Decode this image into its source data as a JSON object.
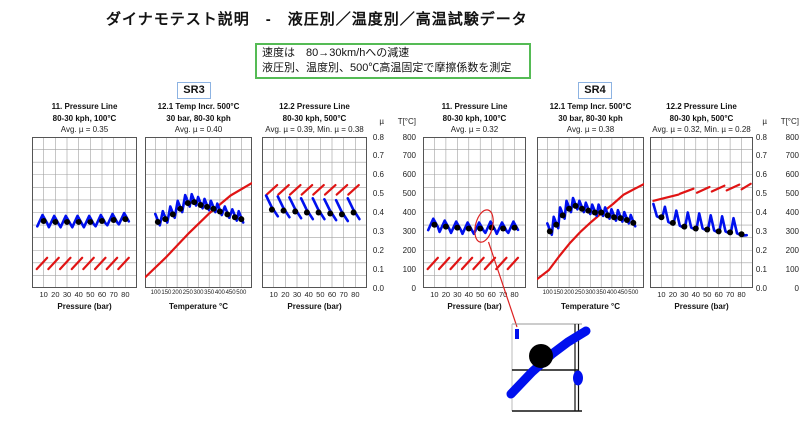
{
  "page": {
    "title": "ダイナモテスト説明　-　液圧別／温度別／高温試験データ"
  },
  "note_box": {
    "lines": [
      "速度は　80→30km/hへの減速",
      "液圧別、温度別、500℃高温固定で摩擦係数を測定"
    ],
    "border_color": "#55bb55"
  },
  "groups": [
    {
      "label": "SR3"
    },
    {
      "label": "SR4"
    }
  ],
  "y_axis": {
    "mu_header": "µ",
    "temp_header": "T[°C]",
    "mu_ticks": [
      "0.8",
      "0.7",
      "0.6",
      "0.5",
      "0.4",
      "0.3",
      "0.2",
      "0.1",
      "0.0"
    ],
    "temp_ticks": [
      "800",
      "700",
      "600",
      "500",
      "400",
      "300",
      "200",
      "100",
      "0"
    ]
  },
  "colors": {
    "mu_line": "#0010ee",
    "temp_line": "#e01414",
    "dot": "#000000",
    "grid": "#a0a0a0",
    "plot_border": "#555555",
    "callout": "#dd2222"
  },
  "chart_data": [
    {
      "group": "SR3",
      "type": "line",
      "title": "11. Pressure Line",
      "subtitle": "80-30 kph, 100°C",
      "stats": "Avg. µ = 0.35",
      "xlabel": "Pressure (bar)",
      "x_ticks": [
        10,
        20,
        30,
        40,
        50,
        60,
        70,
        80
      ],
      "x_domain": [
        0,
        90
      ],
      "y_left": {
        "label": "µ",
        "domain": [
          0,
          0.8
        ]
      },
      "y_right": {
        "label": "T[°C]",
        "domain": [
          0,
          800
        ]
      },
      "series": {
        "mu_dots": [
          [
            10,
            0.355
          ],
          [
            20,
            0.35
          ],
          [
            30,
            0.35
          ],
          [
            40,
            0.35
          ],
          [
            50,
            0.35
          ],
          [
            60,
            0.355
          ],
          [
            70,
            0.36
          ],
          [
            80,
            0.365
          ]
        ],
        "mu_style": "zigzag-flat",
        "temp": {
          "style": "sawtooth",
          "level": 130,
          "amplitude": 30
        }
      }
    },
    {
      "group": "SR3",
      "type": "line",
      "title": "12.1 Temp Incr. 500°C",
      "subtitle": "30 bar, 80-30 kph",
      "stats": "Avg. µ = 0.40",
      "xlabel": "Temperature °C",
      "x_ticks": [
        100,
        150,
        200,
        250,
        300,
        350,
        400,
        450,
        500
      ],
      "x_domain": [
        50,
        550
      ],
      "y_left": {
        "label": "µ",
        "domain": [
          0,
          0.8
        ]
      },
      "y_right": {
        "label": "T[°C]",
        "domain": [
          0,
          800
        ]
      },
      "series": {
        "mu_dots": [
          [
            110,
            0.35
          ],
          [
            145,
            0.365
          ],
          [
            180,
            0.39
          ],
          [
            215,
            0.42
          ],
          [
            250,
            0.45
          ],
          [
            280,
            0.455
          ],
          [
            310,
            0.44
          ],
          [
            340,
            0.43
          ],
          [
            370,
            0.42
          ],
          [
            400,
            0.405
          ],
          [
            435,
            0.39
          ],
          [
            470,
            0.375
          ],
          [
            500,
            0.365
          ]
        ],
        "mu_style": "zigzag-trend",
        "temp": {
          "style": "line",
          "points": [
            [
              52,
              58
            ],
            [
              150,
              165
            ],
            [
              250,
              285
            ],
            [
              350,
              395
            ],
            [
              450,
              490
            ],
            [
              548,
              555
            ]
          ]
        }
      }
    },
    {
      "group": "SR3",
      "type": "line",
      "title": "12.2 Pressure Line",
      "subtitle": "80-30 kph, 500°C",
      "stats": "Avg. µ = 0.39, Min. µ = 0.38",
      "xlabel": "Pressure (bar)",
      "x_ticks": [
        10,
        20,
        30,
        40,
        50,
        60,
        70,
        80
      ],
      "x_domain": [
        0,
        90
      ],
      "y_left": {
        "label": "µ",
        "domain": [
          0,
          0.8
        ]
      },
      "y_right": {
        "label": "T[°C]",
        "domain": [
          0,
          800
        ]
      },
      "series": {
        "mu_dots": [
          [
            10,
            0.415
          ],
          [
            20,
            0.41
          ],
          [
            30,
            0.405
          ],
          [
            40,
            0.4
          ],
          [
            50,
            0.4
          ],
          [
            60,
            0.395
          ],
          [
            70,
            0.39
          ],
          [
            80,
            0.4
          ]
        ],
        "mu_style": "fall",
        "temp": {
          "style": "sawtooth",
          "level": 520,
          "amplitude": 25
        }
      }
    },
    {
      "group": "SR4",
      "type": "line",
      "title": "11. Pressure Line",
      "subtitle": "80-30 kph, 100°C",
      "stats": "Avg. µ = 0.32",
      "xlabel": "Pressure (bar)",
      "x_ticks": [
        10,
        20,
        30,
        40,
        50,
        60,
        70,
        80
      ],
      "x_domain": [
        0,
        90
      ],
      "y_left": {
        "label": "µ",
        "domain": [
          0,
          0.8
        ]
      },
      "y_right": {
        "label": "T[°C]",
        "domain": [
          0,
          800
        ]
      },
      "annotation": {
        "type": "magnifier-callout",
        "target_pressure": 50
      },
      "series": {
        "mu_dots": [
          [
            10,
            0.335
          ],
          [
            20,
            0.325
          ],
          [
            30,
            0.32
          ],
          [
            40,
            0.315
          ],
          [
            50,
            0.315
          ],
          [
            60,
            0.32
          ],
          [
            70,
            0.315
          ],
          [
            80,
            0.32
          ]
        ],
        "mu_style": "zigzag-flat",
        "temp": {
          "style": "sawtooth",
          "level": 130,
          "amplitude": 30
        }
      }
    },
    {
      "group": "SR4",
      "type": "line",
      "title": "12.1 Temp Incr. 500°C",
      "subtitle": "30 bar, 80-30 kph",
      "stats": "Avg. µ = 0.38",
      "xlabel": "Temperature °C",
      "x_ticks": [
        100,
        150,
        200,
        250,
        300,
        350,
        400,
        450,
        500
      ],
      "x_domain": [
        50,
        550
      ],
      "y_left": {
        "label": "µ",
        "domain": [
          0,
          0.8
        ]
      },
      "y_right": {
        "label": "T[°C]",
        "domain": [
          0,
          800
        ]
      },
      "series": {
        "mu_dots": [
          [
            110,
            0.3
          ],
          [
            140,
            0.335
          ],
          [
            170,
            0.385
          ],
          [
            200,
            0.42
          ],
          [
            230,
            0.435
          ],
          [
            260,
            0.42
          ],
          [
            290,
            0.41
          ],
          [
            320,
            0.4
          ],
          [
            350,
            0.4
          ],
          [
            380,
            0.385
          ],
          [
            410,
            0.375
          ],
          [
            440,
            0.37
          ],
          [
            470,
            0.36
          ],
          [
            500,
            0.345
          ]
        ],
        "mu_style": "zigzag-trend",
        "temp": {
          "style": "line",
          "points": [
            [
              52,
              48
            ],
            [
              105,
              95
            ],
            [
              155,
              170
            ],
            [
              205,
              240
            ],
            [
              255,
              300
            ],
            [
              305,
              352
            ],
            [
              355,
              400
            ],
            [
              405,
              445
            ],
            [
              455,
              495
            ],
            [
              548,
              550
            ]
          ]
        }
      }
    },
    {
      "group": "SR4",
      "type": "line",
      "title": "12.2 Pressure Line",
      "subtitle": "80-30 kph, 500°C",
      "stats": "Avg. µ = 0.32, Min. µ = 0.28",
      "xlabel": "Pressure (bar)",
      "x_ticks": [
        10,
        20,
        30,
        40,
        50,
        60,
        70,
        80
      ],
      "x_domain": [
        0,
        90
      ],
      "y_left": {
        "label": "µ",
        "domain": [
          0,
          0.8
        ]
      },
      "y_right": {
        "label": "T[°C]",
        "domain": [
          0,
          800
        ]
      },
      "series": {
        "mu_dots": [
          [
            10,
            0.375
          ],
          [
            20,
            0.345
          ],
          [
            30,
            0.325
          ],
          [
            40,
            0.315
          ],
          [
            50,
            0.31
          ],
          [
            60,
            0.3
          ],
          [
            70,
            0.295
          ],
          [
            80,
            0.285
          ]
        ],
        "mu_style": "spike",
        "temp": {
          "style": "segments",
          "segments": [
            [
              [
                3,
                462
              ],
              [
                25,
                495
              ]
            ],
            [
              [
                26,
                499
              ],
              [
                38,
                526
              ]
            ],
            [
              [
                41,
                505
              ],
              [
                52,
                535
              ]
            ],
            [
              [
                54,
                511
              ],
              [
                65,
                542
              ]
            ],
            [
              [
                67,
                517
              ],
              [
                78,
                548
              ]
            ],
            [
              [
                80,
                523
              ],
              [
                88,
                552
              ]
            ]
          ]
        }
      }
    }
  ]
}
